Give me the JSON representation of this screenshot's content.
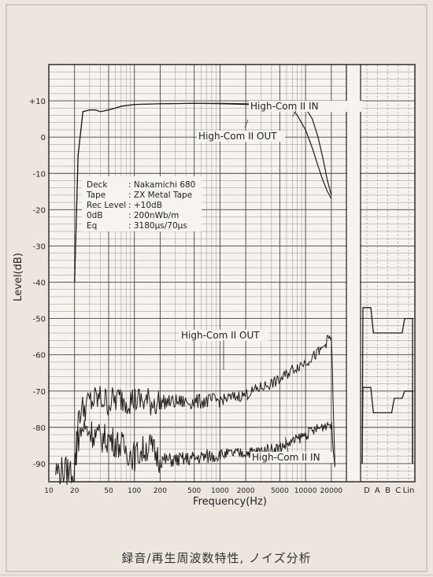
{
  "chart_data": {
    "type": "line",
    "caption": "録音/再生周波数特性, ノイズ分析",
    "xlabel": "Frequency(Hz)",
    "ylabel": "Level(dB)",
    "xscale": "log",
    "xlim": [
      10,
      30000
    ],
    "ylim": [
      -95,
      20
    ],
    "grid": true,
    "x_ticks": [
      "10",
      "20",
      "50",
      "100",
      "200",
      "500",
      "1000",
      "2000",
      "5000",
      "10000",
      "20000"
    ],
    "y_ticks": [
      "+10",
      "0",
      "-10",
      "-20",
      "-30",
      "-40",
      "-50",
      "-60",
      "-70",
      "-80",
      "-90"
    ],
    "weighting_ticks": [
      "D",
      "A",
      "B",
      "C",
      "Lin"
    ],
    "info_box": [
      {
        "key": "Deck",
        "value": ": Nakamichi 680"
      },
      {
        "key": "Tape",
        "value": ": ZX Metal Tape"
      },
      {
        "key": "Rec Level",
        "value": ": +10dB"
      },
      {
        "key": "0dB",
        "value": ": 200nWb/m"
      },
      {
        "key": "Eq",
        "value": ": 3180μs/70μs"
      }
    ],
    "labels": {
      "freq_in": "High-Com II IN",
      "freq_out": "High-Com II OUT",
      "noise_out": "High-Com II OUT",
      "noise_in": "High-Com II IN"
    },
    "series": [
      {
        "name": "High-Com II IN",
        "kind": "frequency_response",
        "x": [
          20,
          22,
          25,
          30,
          35,
          40,
          50,
          60,
          70,
          100,
          200,
          500,
          1000,
          2000,
          5000,
          8000,
          10000,
          12000,
          14000,
          16000,
          18000,
          20000
        ],
        "y": [
          -40,
          -5,
          7,
          7.5,
          7.5,
          7,
          7.5,
          8,
          8.5,
          9,
          9.2,
          9.3,
          9.3,
          9.2,
          9,
          8.6,
          8,
          5,
          0,
          -6,
          -12,
          -16
        ]
      },
      {
        "name": "High-Com II OUT",
        "kind": "frequency_response",
        "x": [
          20,
          22,
          25,
          30,
          35,
          40,
          50,
          60,
          70,
          100,
          200,
          500,
          1000,
          2000,
          5000,
          6000,
          7000,
          8000,
          10000,
          12000,
          14000,
          16000,
          18000,
          20000
        ],
        "y": [
          -40,
          -5,
          7,
          7.5,
          7.5,
          7,
          7.5,
          8,
          8.5,
          9,
          9.2,
          9.3,
          9.2,
          9,
          8.5,
          8.2,
          7.6,
          6,
          2,
          -3,
          -8,
          -12,
          -15,
          -17
        ]
      },
      {
        "name": "High-Com II OUT",
        "kind": "noise",
        "x": [
          12,
          20,
          21,
          22,
          25,
          30,
          40,
          50,
          70,
          100,
          150,
          200,
          300,
          500,
          1000,
          2000,
          3000,
          5000,
          7000,
          10000,
          15000,
          18000,
          20000,
          21000,
          22000
        ],
        "y": [
          -92,
          -92,
          -85,
          -76,
          -75,
          -73,
          -72,
          -73,
          -72,
          -72.5,
          -73,
          -73,
          -73,
          -73,
          -72.5,
          -71,
          -69,
          -67,
          -64,
          -62,
          -59,
          -56,
          -55,
          -72,
          -90
        ],
        "levels": {
          "D": -47,
          "A": -54,
          "B": -54,
          "C": -54,
          "Lin": -50
        }
      },
      {
        "name": "High-Com II IN",
        "kind": "noise",
        "x": [
          20,
          22,
          25,
          30,
          40,
          50,
          70,
          100,
          150,
          200,
          300,
          500,
          700,
          1000,
          2000,
          3000,
          5000,
          7000,
          10000,
          15000,
          18000,
          20000,
          21000,
          22000
        ],
        "y": [
          -90,
          -83,
          -80,
          -81,
          -83,
          -83,
          -85,
          -88,
          -85,
          -89,
          -89,
          -88.5,
          -88,
          -87.5,
          -87,
          -86.5,
          -85.5,
          -84,
          -82,
          -80,
          -79,
          -79,
          -86,
          -90
        ],
        "levels": {
          "D": -69,
          "A": -76,
          "B": -76,
          "C": -72,
          "Lin": -70
        }
      }
    ]
  }
}
